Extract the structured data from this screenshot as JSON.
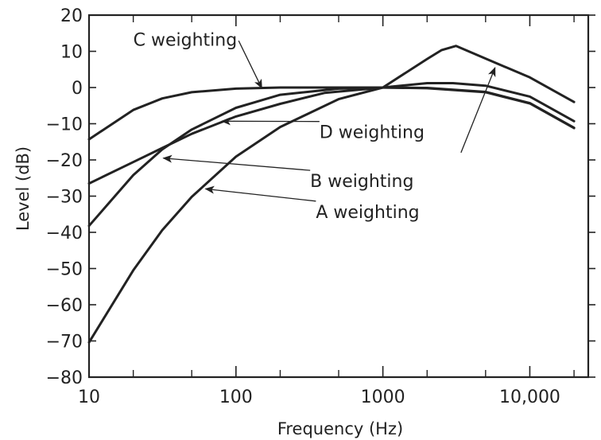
{
  "colors": {
    "background": "#ffffff",
    "ink": "#222222"
  },
  "chart_data": {
    "type": "line",
    "xlabel": "Frequency (Hz)",
    "ylabel": "Level (dB)",
    "xscale": "log",
    "xlim": [
      10,
      25000
    ],
    "ylim": [
      -80,
      20
    ],
    "grid": false,
    "legend": "none",
    "x_ticks": [
      {
        "value": 10,
        "label": "10"
      },
      {
        "value": 100,
        "label": "100"
      },
      {
        "value": 1000,
        "label": "1000"
      },
      {
        "value": 10000,
        "label": "10,000"
      }
    ],
    "y_ticks": [
      {
        "value": 20,
        "label": "20"
      },
      {
        "value": 10,
        "label": "10"
      },
      {
        "value": 0,
        "label": "0"
      },
      {
        "value": -10,
        "label": "−10"
      },
      {
        "value": -20,
        "label": "−20"
      },
      {
        "value": -30,
        "label": "−30"
      },
      {
        "value": -40,
        "label": "−40"
      },
      {
        "value": -50,
        "label": "−50"
      },
      {
        "value": -60,
        "label": "−60"
      },
      {
        "value": -70,
        "label": "−70"
      },
      {
        "value": -80,
        "label": "−80"
      }
    ],
    "series": [
      {
        "name": "C weighting",
        "points": [
          [
            10,
            -14.3
          ],
          [
            20,
            -6.2
          ],
          [
            31.5,
            -3.0
          ],
          [
            50,
            -1.3
          ],
          [
            100,
            -0.3
          ],
          [
            200,
            0
          ],
          [
            500,
            0
          ],
          [
            1000,
            0
          ],
          [
            2000,
            -0.2
          ],
          [
            5000,
            -1.3
          ],
          [
            10000,
            -4.4
          ],
          [
            20000,
            -11.2
          ]
        ]
      },
      {
        "name": "D weighting",
        "points": [
          [
            10,
            -26.5
          ],
          [
            20,
            -20.6
          ],
          [
            31.5,
            -16.7
          ],
          [
            50,
            -12.8
          ],
          [
            100,
            -8.0
          ],
          [
            200,
            -4.5
          ],
          [
            400,
            -1.5
          ],
          [
            1000,
            0
          ],
          [
            2000,
            7.9
          ],
          [
            2500,
            10.3
          ],
          [
            3150,
            11.5
          ],
          [
            5000,
            8.0
          ],
          [
            10000,
            2.8
          ],
          [
            20000,
            -4.0
          ]
        ]
      },
      {
        "name": "B weighting",
        "points": [
          [
            10,
            -38.2
          ],
          [
            20,
            -24.2
          ],
          [
            31.5,
            -17.1
          ],
          [
            50,
            -11.6
          ],
          [
            100,
            -5.6
          ],
          [
            200,
            -2.0
          ],
          [
            500,
            -0.3
          ],
          [
            1000,
            0
          ],
          [
            2000,
            -0.1
          ],
          [
            5000,
            -1.2
          ],
          [
            10000,
            -4.3
          ],
          [
            20000,
            -11.1
          ]
        ]
      },
      {
        "name": "A weighting",
        "points": [
          [
            10,
            -70.4
          ],
          [
            20,
            -50.5
          ],
          [
            31.5,
            -39.4
          ],
          [
            50,
            -30.2
          ],
          [
            100,
            -19.1
          ],
          [
            200,
            -10.9
          ],
          [
            500,
            -3.2
          ],
          [
            1000,
            0
          ],
          [
            2000,
            1.2
          ],
          [
            3000,
            1.2
          ],
          [
            5000,
            0.5
          ],
          [
            10000,
            -2.5
          ],
          [
            20000,
            -9.3
          ]
        ]
      }
    ],
    "annotations": [
      {
        "text": "C weighting",
        "series": "C weighting",
        "at": [
          20,
          11.5
        ],
        "arrow_to": [
          150,
          -0.2
        ]
      },
      {
        "text": "D weighting",
        "series": "D weighting",
        "at": [
          370,
          -14
        ],
        "arrow_to": [
          80,
          -9.3
        ]
      },
      {
        "text": "B weighting",
        "series": "B weighting",
        "at": [
          320,
          -27.5
        ],
        "arrow_to": [
          32,
          -19.5
        ]
      },
      {
        "text": "A weighting",
        "series": "A weighting",
        "at": [
          350,
          -36
        ],
        "arrow_to": [
          62,
          -28
        ]
      },
      {
        "text": "",
        "series": "A weighting",
        "at": [
          3400,
          -18
        ],
        "arrow_to": [
          5800,
          5.5
        ]
      }
    ]
  }
}
